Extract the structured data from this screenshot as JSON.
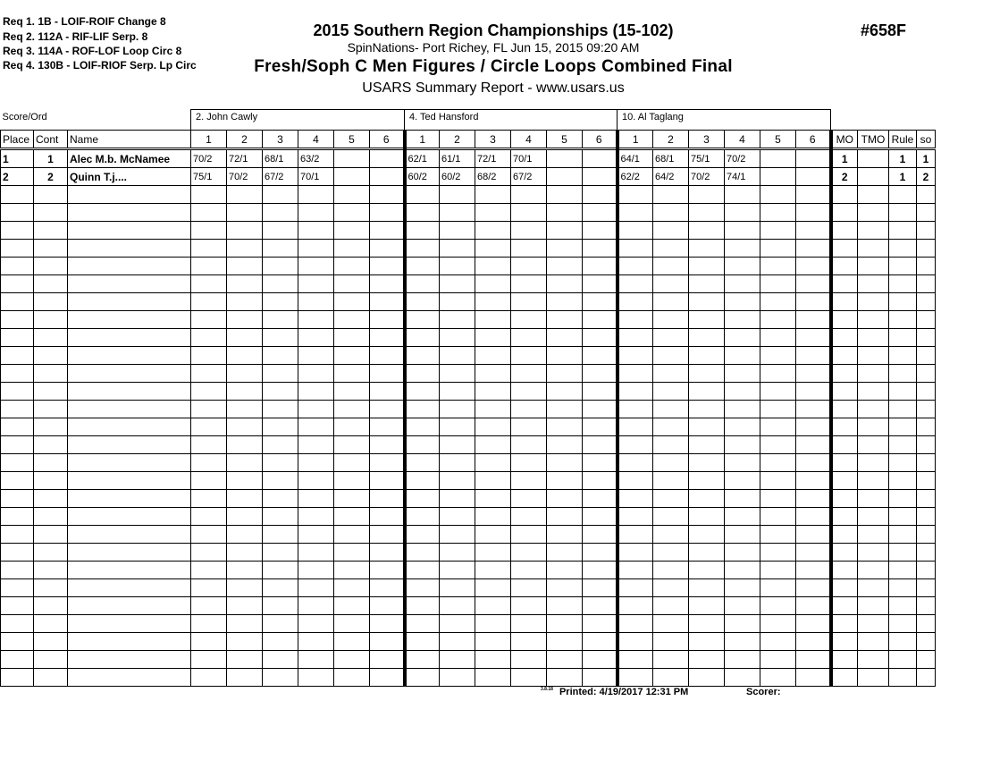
{
  "requirements": [
    "Req  1.  1B - LOIF-ROIF Change 8",
    "Req  2.  112A - RIF-LIF Serp. 8",
    "Req  3.  114A - ROF-LOF Loop Circ 8",
    "Req  4.  130B - LOIF-RIOF Serp. Lp Circ"
  ],
  "title": "2015 Southern Region Championships (15-102)",
  "venue": "SpinNations- Port Richey, FL  Jun 15, 2015  09:20 AM",
  "event": "Fresh/Soph C Men Figures / Circle Loops Combined Final",
  "report": "USARS Summary Report - www.usars.us",
  "event_number": "#658F",
  "table": {
    "score_ord_label": "Score/Ord",
    "judges": [
      "2.  John Cawly",
      "4.  Ted Hansford",
      "10.  Al Taglang"
    ],
    "headers": {
      "place": "Place",
      "cont": "Cont",
      "name": "Name",
      "figures": [
        "1",
        "2",
        "3",
        "4",
        "5",
        "6"
      ],
      "mo": "MO",
      "tmo": "TMO",
      "rule": "Rule",
      "so": "so"
    },
    "rows": [
      {
        "place": "1",
        "cont": "1",
        "name": "Alec M.b. McNamee",
        "scores": [
          [
            "70/2",
            "72/1",
            "68/1",
            "63/2",
            "",
            ""
          ],
          [
            "62/1",
            "61/1",
            "72/1",
            "70/1",
            "",
            ""
          ],
          [
            "64/1",
            "68/1",
            "75/1",
            "70/2",
            "",
            ""
          ]
        ],
        "mo": "1",
        "tmo": "",
        "rule": "1",
        "so": "1"
      },
      {
        "place": "2",
        "cont": "2",
        "name": "Quinn T.j....",
        "scores": [
          [
            "75/1",
            "70/2",
            "67/2",
            "70/1",
            "",
            ""
          ],
          [
            "60/2",
            "60/2",
            "68/2",
            "67/2",
            "",
            ""
          ],
          [
            "62/2",
            "64/2",
            "70/2",
            "74/1",
            "",
            ""
          ]
        ],
        "mo": "2",
        "tmo": "",
        "rule": "1",
        "so": "2"
      }
    ],
    "empty_rows": 28
  },
  "footer": {
    "version": "3.8.18",
    "printed": "Printed:  4/19/2017 12:31 PM",
    "scorer": "Scorer:"
  }
}
